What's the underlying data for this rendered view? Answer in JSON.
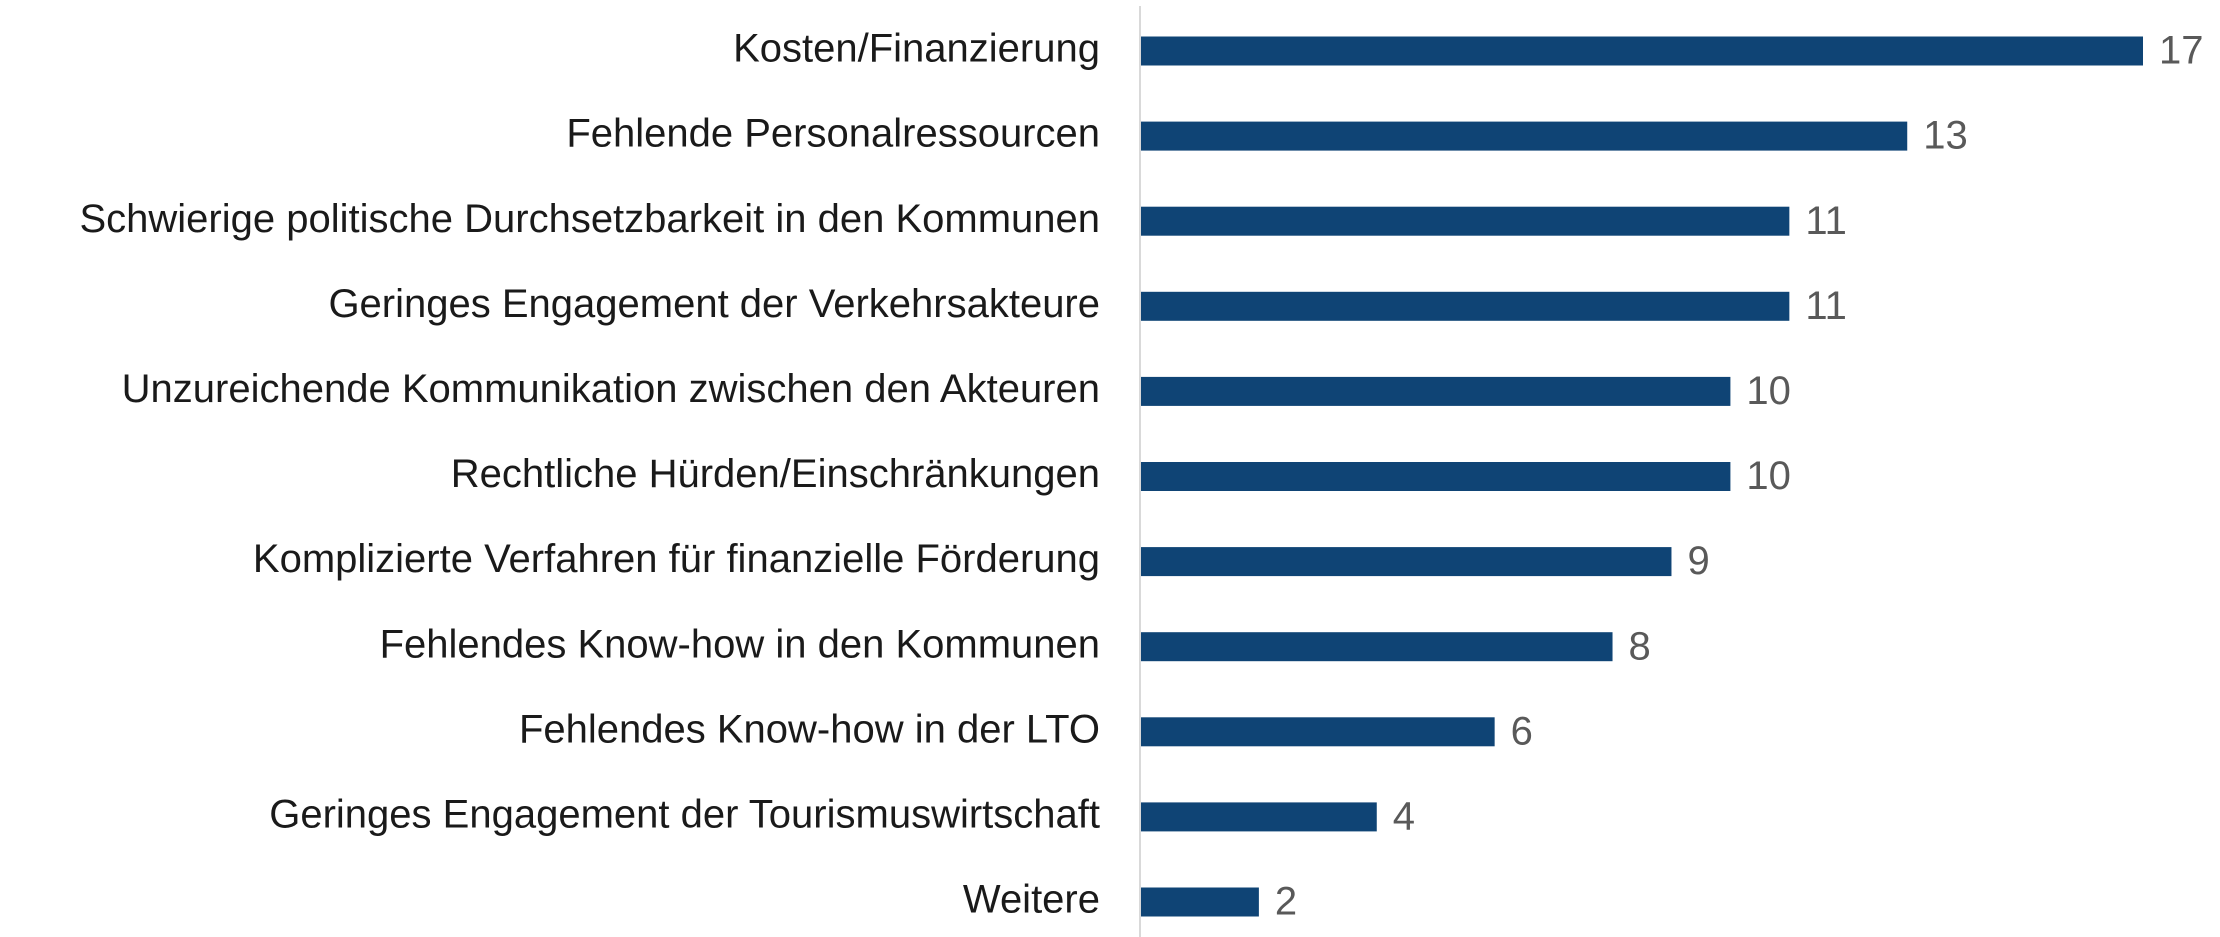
{
  "chart_data": {
    "type": "bar",
    "orientation": "horizontal",
    "categories": [
      "Kosten/Finanzierung",
      "Fehlende Personalressourcen",
      "Schwierige politische Durchsetzbarkeit in den Kommunen",
      "Geringes Engagement der Verkehrsakteure",
      "Unzureichende Kommunikation zwischen den Akteuren",
      "Rechtliche Hürden/Einschränkungen",
      "Komplizierte Verfahren für finanzielle Förderung",
      "Fehlendes Know-how in den Kommunen",
      "Fehlendes Know-how in der LTO",
      "Geringes Engagement der Tourismuswirtschaft",
      "Weitere"
    ],
    "values": [
      17,
      13,
      11,
      11,
      10,
      10,
      9,
      8,
      6,
      4,
      2
    ],
    "color": "#0f4475"
  }
}
